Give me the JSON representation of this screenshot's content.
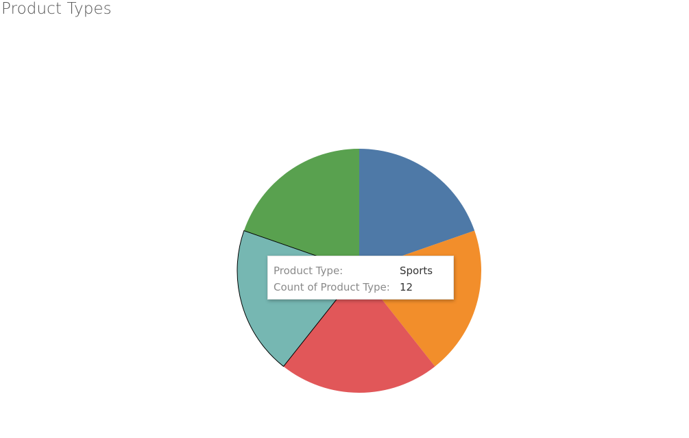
{
  "title": "Product Types",
  "chart_data": {
    "type": "pie",
    "categories": [
      "",
      "",
      "",
      "",
      ""
    ],
    "values": [
      12,
      12,
      13,
      12,
      12
    ],
    "colors": [
      "#4e79a7",
      "#f28e2b",
      "#e15759",
      "#76b7b2",
      "#59a14f"
    ],
    "highlighted_index": 3,
    "tooltip": {
      "rows": [
        {
          "label": "Product Type:",
          "value": "Sports"
        },
        {
          "label": "Count of Product Type:",
          "value": "12"
        }
      ]
    }
  }
}
